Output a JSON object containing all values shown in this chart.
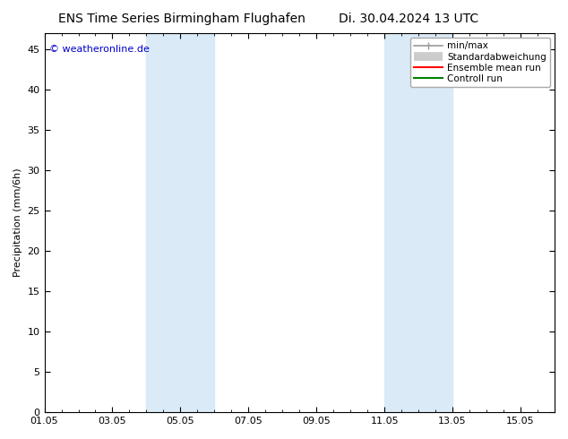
{
  "title": "ENS Time Series Birmingham Flughafen",
  "title_right": "Di. 30.04.2024 13 UTC",
  "ylabel": "Precipitation (mm/6h)",
  "watermark": "© weatheronline.de",
  "watermark_color": "#0000cc",
  "ylim": [
    0,
    47
  ],
  "yticks": [
    0,
    5,
    10,
    15,
    20,
    25,
    30,
    35,
    40,
    45
  ],
  "xlim": [
    0,
    15
  ],
  "xtick_labels": [
    "01.05",
    "03.05",
    "05.05",
    "07.05",
    "09.05",
    "11.05",
    "13.05",
    "15.05"
  ],
  "xtick_positions": [
    0,
    2,
    4,
    6,
    8,
    10,
    12,
    14
  ],
  "bg_color": "#ffffff",
  "shaded_regions": [
    {
      "start": 3.0,
      "end": 5.0,
      "color": "#daeaf6"
    },
    {
      "start": 10.0,
      "end": 12.0,
      "color": "#daeaf6"
    }
  ],
  "legend_items": [
    {
      "label": "min/max",
      "color": "#999999",
      "lw": 1.2
    },
    {
      "label": "Standardabweichung",
      "color": "#cccccc",
      "lw": 7
    },
    {
      "label": "Ensemble mean run",
      "color": "#ff0000",
      "lw": 1.5
    },
    {
      "label": "Controll run",
      "color": "#008000",
      "lw": 1.5
    }
  ],
  "font_size_title": 10,
  "font_size_axis": 8,
  "font_size_legend": 7.5,
  "font_size_watermark": 8
}
